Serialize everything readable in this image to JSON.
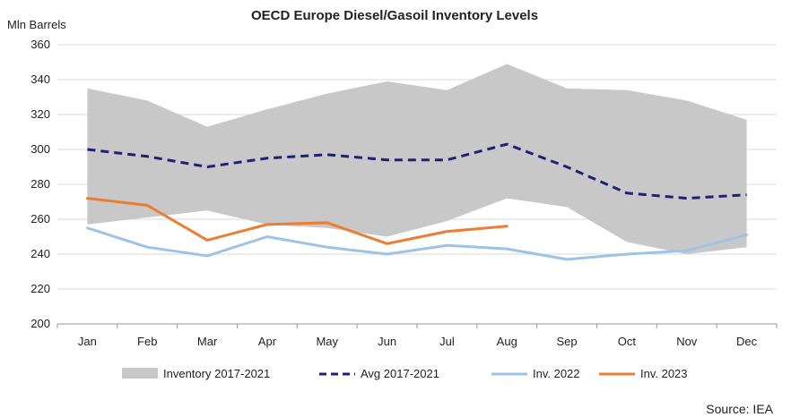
{
  "chart_data": {
    "type": "line",
    "title": "OECD Europe Diesel/Gasoil Inventory Levels",
    "ylabel": "Mln Barrels",
    "xlabel": "",
    "ylim": [
      200,
      360
    ],
    "yticks": [
      200,
      220,
      240,
      260,
      280,
      300,
      320,
      340,
      360
    ],
    "grid": "horizontal",
    "legend_position": "bottom",
    "categories": [
      "Jan",
      "Feb",
      "Mar",
      "Apr",
      "May",
      "Jun",
      "Jul",
      "Aug",
      "Sep",
      "Oct",
      "Nov",
      "Dec"
    ],
    "range_band": {
      "name": "Inventory 2017-2021",
      "color": "#c8c8c8",
      "upper": [
        335,
        328,
        313,
        323,
        332,
        339,
        334,
        349,
        335,
        334,
        328,
        317
      ],
      "lower": [
        257,
        261,
        265,
        257,
        255,
        250,
        259,
        272,
        267,
        247,
        240,
        244
      ]
    },
    "series": [
      {
        "name": "Avg 2017-2021",
        "color": "#1f1f7a",
        "style": "dashed",
        "values": [
          300,
          296,
          290,
          295,
          297,
          294,
          294,
          303,
          290,
          275,
          272,
          274
        ]
      },
      {
        "name": "Inv. 2022",
        "color": "#9dc3e6",
        "style": "solid",
        "values": [
          255,
          244,
          239,
          250,
          244,
          240,
          245,
          243,
          237,
          240,
          242,
          251
        ]
      },
      {
        "name": "Inv. 2023",
        "color": "#ed7d31",
        "style": "solid",
        "values": [
          272,
          268,
          248,
          257,
          258,
          246,
          253,
          256,
          null,
          null,
          null,
          null
        ]
      }
    ],
    "source": "Source: IEA"
  }
}
